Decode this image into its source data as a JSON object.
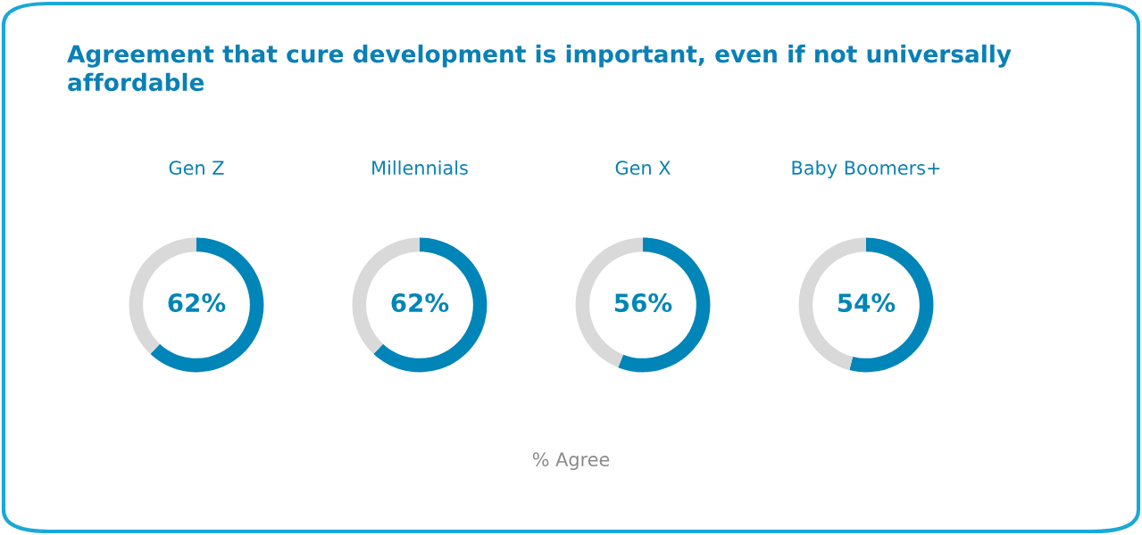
{
  "chart_data": [
    {
      "type": "other",
      "title": "Agreement that cure development is important, even if not universally affordable"
    },
    {
      "type": "donut",
      "title": "Gen Z",
      "categories": [
        null,
        null
      ],
      "values": [
        62,
        38
      ],
      "colors": [
        "#0085b8",
        "#d9d9d9"
      ],
      "value_labels": [
        "62%",
        null
      ]
    },
    {
      "type": "donut",
      "title": "Millennials",
      "categories": [
        null,
        null
      ],
      "values": [
        62,
        38
      ],
      "colors": [
        "#0085b8",
        "#d9d9d9"
      ],
      "value_labels": [
        "62%",
        null
      ]
    },
    {
      "type": "donut",
      "title": "Gen X",
      "categories": [
        null,
        null
      ],
      "values": [
        56,
        44
      ],
      "colors": [
        "#0085b8",
        "#d9d9d9"
      ],
      "value_labels": [
        "56%",
        null
      ]
    },
    {
      "type": "donut",
      "title": "Baby Boomers+",
      "categories": [
        null,
        null
      ],
      "values": [
        54,
        46
      ],
      "colors": [
        "#0085b8",
        "#d9d9d9"
      ],
      "value_labels": [
        "54%",
        null
      ]
    },
    {
      "type": "other",
      "annotations": [
        "% Agree"
      ]
    }
  ]
}
